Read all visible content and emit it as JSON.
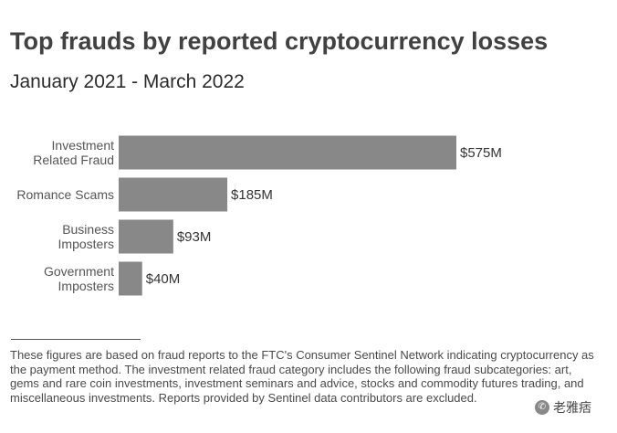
{
  "chart_data": {
    "type": "bar",
    "orientation": "horizontal",
    "title": "Top frauds by reported cryptocurrency losses",
    "subtitle": "January 2021 - March 2022",
    "categories": [
      [
        "Investment",
        "Related Fraud"
      ],
      [
        "Romance Scams"
      ],
      [
        "Business",
        "Imposters"
      ],
      [
        "Government",
        "Imposters"
      ]
    ],
    "values": [
      575,
      185,
      93,
      40
    ],
    "value_labels": [
      "$575M",
      "$185M",
      "$93M",
      "$40M"
    ],
    "unit": "$M",
    "xlim": [
      0,
      575
    ],
    "grid": false,
    "legend": "none",
    "bar_color": "#888888"
  },
  "footnote": "These figures are based on fraud reports to the FTC's Consumer Sentinel Network indicating cryptocurrency as the payment method. The investment related fraud category includes the following fraud subcategories: art, gems and rare coin investments, investment seminars and advice, stocks and commodity futures trading, and miscellaneous investments. Reports provided by Sentinel data contributors are excluded.",
  "watermark": {
    "text": "老雅痞",
    "icon": "wechat-icon"
  }
}
